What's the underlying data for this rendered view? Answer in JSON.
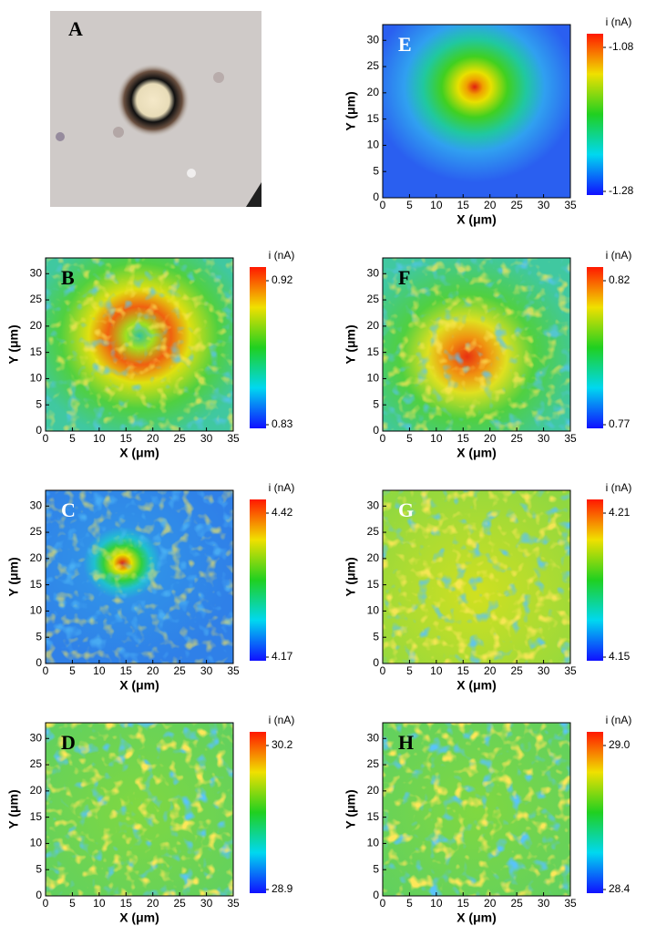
{
  "chart_data": [
    {
      "type": "image",
      "label": "A"
    },
    {
      "type": "heatmap",
      "label": "E",
      "label_color": "#ffffff",
      "xlabel": "X (μm)",
      "ylabel": "Y (μm)",
      "xlim": [
        0,
        35
      ],
      "ylim": [
        0,
        33
      ],
      "xticks": [
        0,
        5,
        10,
        15,
        20,
        25,
        30,
        35
      ],
      "yticks": [
        0,
        5,
        10,
        15,
        20,
        25,
        30
      ],
      "colorbar_label": "i (nA)",
      "colorbar_ticks": [
        -1.28,
        -1.08
      ]
    },
    {
      "type": "heatmap",
      "label": "B",
      "label_color": "#000000",
      "xlabel": "X (μm)",
      "ylabel": "Y (μm)",
      "xlim": [
        0,
        35
      ],
      "ylim": [
        0,
        33
      ],
      "xticks": [
        0,
        5,
        10,
        15,
        20,
        25,
        30,
        35
      ],
      "yticks": [
        0,
        5,
        10,
        15,
        20,
        25,
        30
      ],
      "colorbar_label": "i (nA)",
      "colorbar_ticks": [
        0.83,
        0.92
      ]
    },
    {
      "type": "heatmap",
      "label": "F",
      "label_color": "#000000",
      "xlabel": "X (μm)",
      "ylabel": "Y (μm)",
      "xlim": [
        0,
        35
      ],
      "ylim": [
        0,
        33
      ],
      "xticks": [
        0,
        5,
        10,
        15,
        20,
        25,
        30,
        35
      ],
      "yticks": [
        0,
        5,
        10,
        15,
        20,
        25,
        30
      ],
      "colorbar_label": "i (nA)",
      "colorbar_ticks": [
        0.77,
        0.82
      ]
    },
    {
      "type": "heatmap",
      "label": "C",
      "label_color": "#ffffff",
      "xlabel": "X (μm)",
      "ylabel": "Y (μm)",
      "xlim": [
        0,
        35
      ],
      "ylim": [
        0,
        33
      ],
      "xticks": [
        0,
        5,
        10,
        15,
        20,
        25,
        30,
        35
      ],
      "yticks": [
        0,
        5,
        10,
        15,
        20,
        25,
        30
      ],
      "colorbar_label": "i (nA)",
      "colorbar_ticks": [
        4.17,
        4.42
      ]
    },
    {
      "type": "heatmap",
      "label": "G",
      "label_color": "#ffffff",
      "xlabel": "X (μm)",
      "ylabel": "Y (μm)",
      "xlim": [
        0,
        35
      ],
      "ylim": [
        0,
        33
      ],
      "xticks": [
        0,
        5,
        10,
        15,
        20,
        25,
        30,
        35
      ],
      "yticks": [
        0,
        5,
        10,
        15,
        20,
        25,
        30
      ],
      "colorbar_label": "i (nA)",
      "colorbar_ticks": [
        4.15,
        4.21
      ]
    },
    {
      "type": "heatmap",
      "label": "D",
      "label_color": "#000000",
      "xlabel": "X (μm)",
      "ylabel": "Y (μm)",
      "xlim": [
        0,
        35
      ],
      "ylim": [
        0,
        33
      ],
      "xticks": [
        0,
        5,
        10,
        15,
        20,
        25,
        30,
        35
      ],
      "yticks": [
        0,
        5,
        10,
        15,
        20,
        25,
        30
      ],
      "colorbar_label": "i (nA)",
      "colorbar_ticks": [
        28.9,
        30.2
      ]
    },
    {
      "type": "heatmap",
      "label": "H",
      "label_color": "#000000",
      "xlabel": "X (μm)",
      "ylabel": "Y (μm)",
      "xlim": [
        0,
        35
      ],
      "ylim": [
        0,
        33
      ],
      "xticks": [
        0,
        5,
        10,
        15,
        20,
        25,
        30,
        35
      ],
      "yticks": [
        0,
        5,
        10,
        15,
        20,
        25,
        30
      ],
      "colorbar_label": "i (nA)",
      "colorbar_ticks": [
        28.4,
        {
          "value": 29,
          "label": "29.0"
        }
      ]
    }
  ]
}
